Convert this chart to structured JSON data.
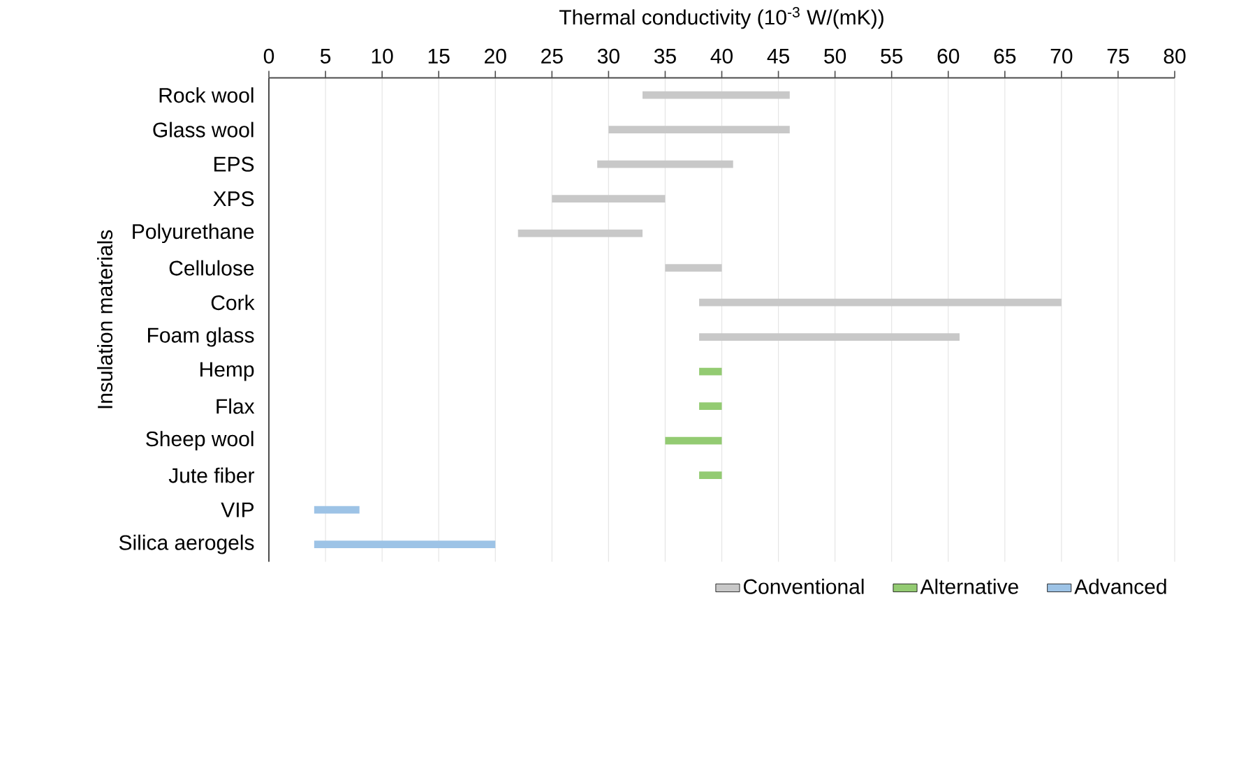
{
  "chart_data": {
    "type": "bar",
    "orientation": "horizontal",
    "xlabel": "Thermal conductivity (10$^{-3}$ W/(mK))",
    "ylabel": "Insulation materials",
    "categories": [
      "Rock wool",
      "Glass wool",
      "EPS",
      "XPS",
      "Polyurethane",
      "Cellulose",
      "Cork",
      "Foam glass",
      "Hemp",
      "Flax",
      "Sheep wool",
      "Jute fiber",
      "VIP",
      "Silica aerogels"
    ],
    "series": [
      {
        "name": "Conventional",
        "color": "#c8c8c8",
        "base": [
          33,
          30,
          29,
          25,
          22,
          35,
          38,
          38,
          null,
          null,
          null,
          null,
          null,
          null
        ],
        "values": [
          13,
          16,
          12,
          10,
          11,
          5,
          32,
          23,
          null,
          null,
          null,
          null,
          null,
          null
        ]
      },
      {
        "name": "Alternative",
        "color": "#93cb72",
        "base": [
          null,
          null,
          null,
          null,
          null,
          null,
          null,
          null,
          38,
          38,
          35,
          38,
          null,
          null
        ],
        "values": [
          null,
          null,
          null,
          null,
          null,
          null,
          null,
          null,
          2,
          2,
          5,
          2,
          null,
          null
        ]
      },
      {
        "name": "Advanced",
        "color": "#9dc3e6",
        "base": [
          null,
          null,
          null,
          null,
          null,
          null,
          null,
          null,
          null,
          null,
          null,
          null,
          4,
          4
        ],
        "values": [
          null,
          null,
          null,
          null,
          null,
          null,
          null,
          null,
          null,
          null,
          null,
          null,
          4,
          16
        ]
      }
    ],
    "xlim": [
      0,
      80
    ],
    "xticks": [
      0,
      5,
      10,
      15,
      20,
      25,
      30,
      35,
      40,
      45,
      50,
      55,
      60,
      65,
      70,
      75,
      80
    ],
    "grid": "x",
    "legend": "bottom right"
  }
}
